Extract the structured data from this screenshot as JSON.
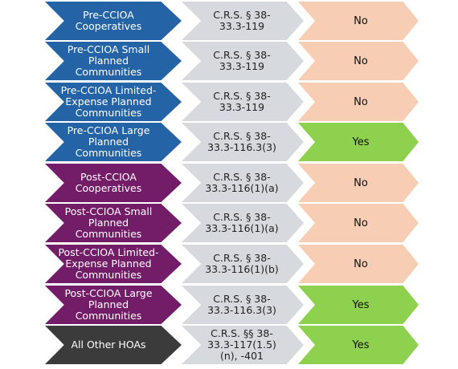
{
  "rows": [
    {
      "category": "Pre-CCIOA Cooperatives",
      "citation": "C.R.S. § 38-33.3-119",
      "answer": "No"
    },
    {
      "category": "Pre-CCIOA Small Planned Communities",
      "citation": "C.R.S. § 38-33.3-119",
      "answer": "No"
    },
    {
      "category": "Pre-CCIOA Limited-Expense Planned Communities",
      "citation": "C.R.S. § 38-33.3-119",
      "answer": "No"
    },
    {
      "category": "Pre-CCIOA Large Planned Communities",
      "citation": "C.R.S. § 38-33.3-116.3(3)",
      "answer": "Yes"
    },
    {
      "category": "Post-CCIOA Cooperatives",
      "citation": "C.R.S. § 38-33.3-116(1)(a)",
      "answer": "No"
    },
    {
      "category": "Post-CCIOA Small Planned Communities",
      "citation": "C.R.S. § 38-33.3-116(1)(a)",
      "answer": "No"
    },
    {
      "category": "Post-CCIOA Limited-Expense Planned Communities",
      "citation": "C.R.S. § 38-33.3-116(1)(b)",
      "answer": "No"
    },
    {
      "category": "Post-CCIOA Large Planned Communities",
      "citation": "C.R.S. § 38-33.3-116.3(3)",
      "answer": "Yes"
    },
    {
      "category": "All Other HOAs",
      "citation": "C.R.S. §§ 38-33.3-117(1.5)(n), -401",
      "answer": "Yes"
    }
  ],
  "colors": {
    "pre_ccioa": "#2463a6",
    "post_ccioa": "#731c67",
    "other": "#3b3b3b",
    "citation": "#d6d9dd",
    "no": "#f7cdb3",
    "yes": "#8ed14e"
  }
}
